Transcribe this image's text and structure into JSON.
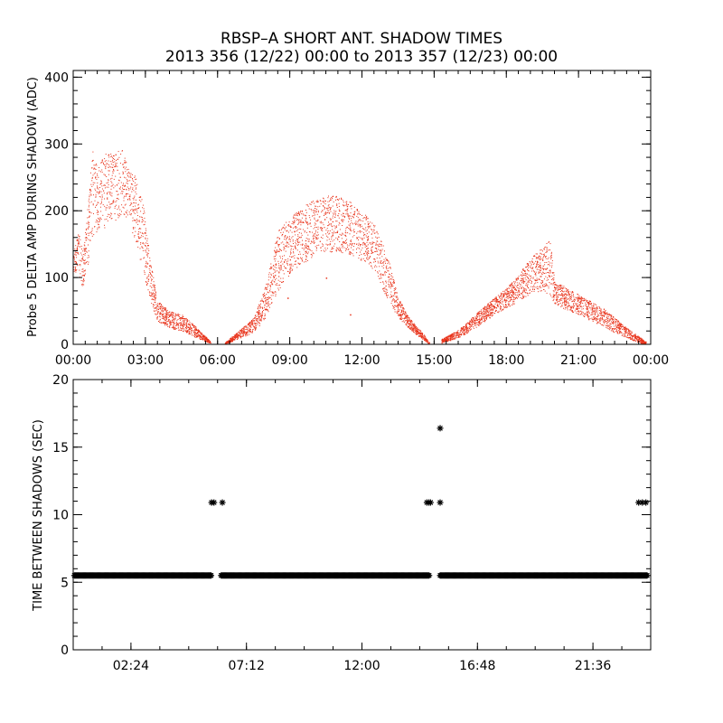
{
  "title": {
    "line1": "RBSP–A SHORT ANT. SHADOW TIMES",
    "line2": "2013 356 (12/22) 00:00 to 2013 357 (12/23) 00:00"
  },
  "chart_data": [
    {
      "type": "scatter",
      "name": "delta-amp",
      "ylabel": "Probe 5 DELTA AMP DURING SHADOW (ADC)",
      "xlabel": "",
      "xlim": [
        0,
        24
      ],
      "ylim": [
        0,
        410
      ],
      "x_ticks": [
        0,
        3,
        6,
        9,
        12,
        15,
        18,
        21,
        24
      ],
      "x_tick_labels": [
        "00:00",
        "03:00",
        "06:00",
        "09:00",
        "12:00",
        "15:00",
        "18:00",
        "21:00",
        "00:00"
      ],
      "y_ticks": [
        0,
        100,
        200,
        300,
        400
      ],
      "y_tick_labels": [
        "0",
        "100",
        "200",
        "300",
        "400"
      ],
      "marker_color": "#e8321a",
      "series": [
        {
          "name": "shadow-pass-1",
          "x": [
            0.0,
            0.2,
            0.4,
            0.6,
            0.8,
            1.0,
            1.3,
            1.6,
            2.0,
            2.3,
            2.6,
            2.9,
            3.2,
            3.5,
            4.0,
            4.5,
            5.0,
            5.4,
            5.7
          ],
          "y_low": [
            110,
            100,
            85,
            120,
            160,
            170,
            175,
            180,
            195,
            180,
            150,
            110,
            65,
            35,
            25,
            20,
            12,
            6,
            2
          ],
          "y_high": [
            150,
            170,
            140,
            210,
            300,
            260,
            290,
            285,
            295,
            265,
            250,
            210,
            125,
            65,
            50,
            45,
            30,
            15,
            5
          ]
        },
        {
          "name": "shadow-pass-2",
          "x": [
            6.3,
            6.8,
            7.5,
            8.0,
            8.5,
            9.0,
            9.5,
            10.0,
            10.5,
            11.0,
            11.5,
            12.0,
            12.5,
            13.0,
            13.5,
            14.0,
            14.5,
            14.8
          ],
          "y_low": [
            0,
            8,
            18,
            40,
            80,
            105,
            120,
            132,
            138,
            138,
            135,
            125,
            105,
            70,
            40,
            22,
            8,
            0
          ],
          "y_high": [
            3,
            18,
            40,
            90,
            170,
            190,
            205,
            218,
            223,
            222,
            214,
            200,
            180,
            140,
            70,
            38,
            18,
            3
          ]
        },
        {
          "name": "shadow-pass-3",
          "x": [
            15.3,
            16.0,
            16.5,
            17.0,
            17.5,
            18.0,
            18.5,
            19.0,
            19.5,
            19.8,
            20.0,
            20.5,
            21.0,
            21.5,
            22.0,
            22.5,
            23.0,
            23.5,
            23.8
          ],
          "y_low": [
            2,
            10,
            20,
            32,
            45,
            55,
            65,
            75,
            80,
            70,
            60,
            52,
            45,
            36,
            28,
            18,
            10,
            3,
            0
          ],
          "y_high": [
            8,
            22,
            38,
            55,
            70,
            85,
            105,
            130,
            145,
            160,
            95,
            85,
            75,
            65,
            55,
            40,
            25,
            12,
            4
          ]
        }
      ],
      "outliers": [
        [
          8.9,
          70
        ],
        [
          10.5,
          100
        ],
        [
          11.5,
          45
        ]
      ]
    },
    {
      "type": "scatter",
      "name": "time-between-shadows",
      "ylabel": "TIME BETWEEN SHADOWS (SEC)",
      "xlabel": "",
      "xlim": [
        0,
        24
      ],
      "ylim": [
        0,
        20
      ],
      "x_ticks": [
        2.4,
        7.2,
        12.0,
        16.8,
        21.6
      ],
      "x_tick_labels": [
        "02:24",
        "07:12",
        "12:00",
        "16:48",
        "21:36"
      ],
      "y_ticks": [
        0,
        5,
        10,
        15,
        20
      ],
      "y_tick_labels": [
        "0",
        "5",
        "10",
        "15",
        "20"
      ],
      "marker": "*",
      "marker_color": "#000000",
      "baseline_value": 5.5,
      "baseline_segments": [
        [
          0.05,
          5.75
        ],
        [
          6.15,
          14.8
        ],
        [
          15.25,
          23.85
        ]
      ],
      "points": [
        {
          "x": 5.75,
          "y": 10.9
        },
        {
          "x": 5.85,
          "y": 10.9
        },
        {
          "x": 6.2,
          "y": 10.9
        },
        {
          "x": 14.7,
          "y": 10.9
        },
        {
          "x": 14.78,
          "y": 10.9
        },
        {
          "x": 14.85,
          "y": 10.9
        },
        {
          "x": 15.25,
          "y": 16.4
        },
        {
          "x": 15.25,
          "y": 10.9
        },
        {
          "x": 23.5,
          "y": 10.9
        },
        {
          "x": 23.65,
          "y": 10.9
        },
        {
          "x": 23.8,
          "y": 10.9
        }
      ]
    }
  ]
}
